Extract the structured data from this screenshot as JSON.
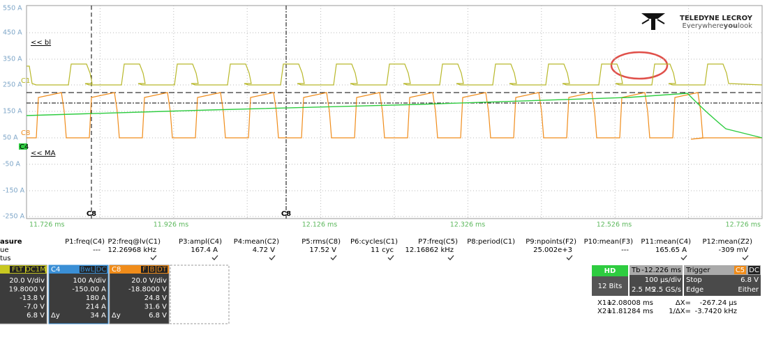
{
  "scope": {
    "y_axis_labels": [
      "550 A",
      "450 A",
      "350 A",
      "250 A",
      "150 A",
      "50 A",
      "-50 A",
      "-150 A",
      "-250 A"
    ],
    "x_axis_labels": [
      "11.726 ms",
      "11.926 ms",
      "12.126 ms",
      "12.326 ms",
      "12.526 ms",
      "12.726 ms"
    ],
    "cursor_labels": [
      "C8",
      "C8"
    ],
    "trace_labels": [
      "<< bl",
      "<< MA"
    ],
    "channel_markers": [
      "C1",
      "C8",
      "C4"
    ],
    "logo": {
      "brand": "TELEDYNE LECROY",
      "tagline": [
        "Everywhere",
        "you",
        "look"
      ]
    }
  },
  "measurements": {
    "row_labels": [
      "asure",
      "ue",
      "tus"
    ],
    "params": [
      {
        "name": "P1:freq(C4)",
        "value": "---"
      },
      {
        "name": "P2:freq@lv(C1)",
        "value": "12.26968 kHz"
      },
      {
        "name": "P3:ampl(C4)",
        "value": "167.4 A"
      },
      {
        "name": "P4:mean(C2)",
        "value": "4.72 V"
      },
      {
        "name": "P5:rms(C8)",
        "value": "17.52 V"
      },
      {
        "name": "P6:cycles(C1)",
        "value": "11 cyc"
      },
      {
        "name": "P7:freq(C5)",
        "value": "12.16862 kHz"
      },
      {
        "name": "P8:period(C1)"
      },
      {
        "name": "P9:npoints(F2)",
        "value": "25.002e+3"
      },
      {
        "name": "P10:mean(F3)",
        "value": "---"
      },
      {
        "name": "P11:mean(C4)",
        "value": "165.65 A"
      },
      {
        "name": "P12:mean(Z2)",
        "value": "-309 mV"
      }
    ]
  },
  "channels": [
    {
      "badges": [
        "FLT",
        "DC1M"
      ],
      "rows": [
        {
          "value": "20.0 V/div"
        },
        {
          "value": "19.8000 V"
        },
        {
          "value": "-13.8 V"
        },
        {
          "value": "-7.0 V"
        },
        {
          "value": "6.8 V"
        }
      ]
    },
    {
      "name": "C4",
      "badges": [
        "BwL",
        "DC"
      ],
      "rows": [
        {
          "value": "100 A/div"
        },
        {
          "value": "-150.00 A"
        },
        {
          "value": "180 A"
        },
        {
          "value": "214 A"
        },
        {
          "label": "Δy",
          "value": "34 A"
        }
      ]
    },
    {
      "name": "C8",
      "badges": [
        "F",
        "B",
        "DT"
      ],
      "rows": [
        {
          "value": "20.0 V/div"
        },
        {
          "value": "-18.8000 V"
        },
        {
          "value": "24.8 V"
        },
        {
          "value": "31.6 V"
        },
        {
          "label": "Δy",
          "value": "6.8 V"
        }
      ]
    }
  ],
  "acquisition": {
    "mode": "HD",
    "bits": "12 Bits",
    "tb_label": "Tb",
    "delay": "-12.226 ms",
    "per_div": "100 µs/div",
    "points": "2.5 MS",
    "rate": "2.5 GS/s",
    "trigger_label": "Trigger",
    "trigger_badges": [
      "C5",
      "DC"
    ],
    "trigger_state": "Stop",
    "trigger_level": "6.8 V",
    "trigger_type": "Edge",
    "trigger_slope": "Either"
  },
  "cursors": {
    "rows": [
      [
        "X1=",
        "12.08008 ms",
        "ΔX=",
        "-267.24 µs"
      ],
      [
        "X2=",
        "11.81284 ms",
        "1/ΔX=",
        "-3.7420 kHz"
      ]
    ]
  }
}
